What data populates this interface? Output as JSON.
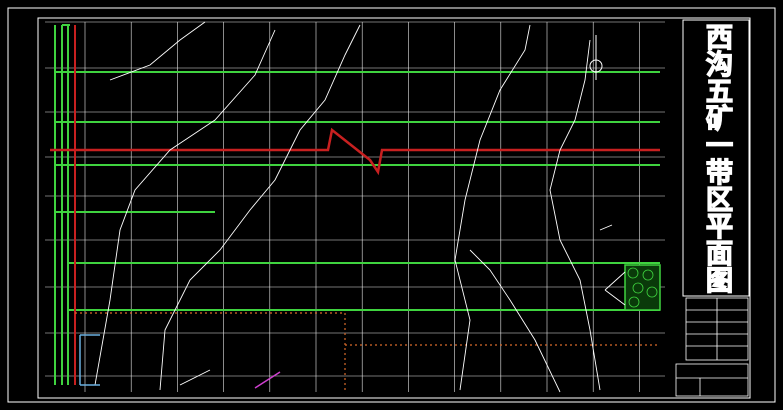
{
  "title": "西沟五矿一带区平面图"
}
